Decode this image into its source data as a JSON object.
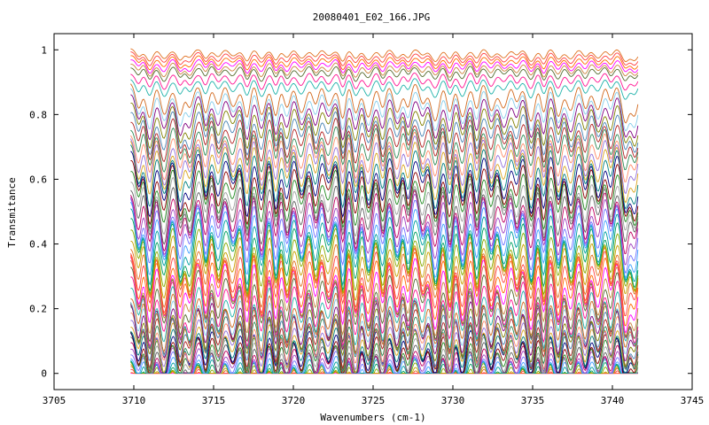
{
  "chart_data": {
    "type": "line",
    "title": "20080401_E02_166.JPG",
    "xlabel": "Wavenumbers (cm-1)",
    "ylabel": "Transmitance",
    "xlim": [
      3705,
      3745
    ],
    "ylim": [
      -0.05,
      1.05
    ],
    "x_ticks": [
      "3705",
      "3710",
      "3715",
      "3720",
      "3725",
      "3730",
      "3735",
      "3740",
      "3745"
    ],
    "y_ticks": [
      "0",
      "0.2",
      "0.4",
      "0.6",
      "0.8",
      "1"
    ],
    "x_range_data": [
      3709.8,
      3741.6
    ],
    "grid": false,
    "legend": "none",
    "series_levels": [
      0.0,
      0.005,
      0.01,
      0.015,
      0.02,
      0.03,
      0.04,
      0.05,
      0.06,
      0.07,
      0.08,
      0.09,
      0.1,
      0.11,
      0.12,
      0.13,
      0.14,
      0.15,
      0.16,
      0.17,
      0.18,
      0.19,
      0.2,
      0.21,
      0.22,
      0.23,
      0.24,
      0.25,
      0.27,
      0.29,
      0.31,
      0.33,
      0.35,
      0.37,
      0.39,
      0.41,
      0.43,
      0.45,
      0.47,
      0.49,
      0.51,
      0.53,
      0.55,
      0.57,
      0.59,
      0.61,
      0.63,
      0.65,
      0.67,
      0.69,
      0.71,
      0.73,
      0.75,
      0.77,
      0.79,
      0.81,
      0.83,
      0.85,
      0.87,
      0.89,
      0.91,
      0.93,
      0.95,
      0.96,
      0.97,
      0.98,
      0.99,
      1.0
    ],
    "absorption_lines": [
      3710.3,
      3711.0,
      3711.9,
      3712.9,
      3713.5,
      3714.5,
      3715.3,
      3716.2,
      3717.1,
      3718.0,
      3718.9,
      3719.6,
      3720.5,
      3721.4,
      3722.2,
      3723.1,
      3723.9,
      3724.7,
      3725.6,
      3726.5,
      3727.2,
      3728.1,
      3728.9,
      3729.8,
      3730.6,
      3731.5,
      3732.4,
      3733.2,
      3734.0,
      3734.9,
      3735.7,
      3736.6,
      3737.4,
      3738.3,
      3739.1,
      3739.9,
      3740.8,
      3741.4
    ],
    "colors": [
      "#ff00ff",
      "#ff6a00",
      "#ff4040",
      "#e07020",
      "#c8a000",
      "#88aa00",
      "#00a060",
      "#00a0a0",
      "#3fa0ff",
      "#7070ff",
      "#a040c0",
      "#c00060",
      "#606060",
      "#a0a0a0",
      "#228b22",
      "#8b0000",
      "#000080",
      "#008080",
      "#daa520",
      "#9370db",
      "#ff8c69",
      "#2e8b57",
      "#b22222",
      "#4682b4",
      "#808000",
      "#800080",
      "#87ceeb",
      "#d2691e",
      "#20b2aa",
      "#ff1493",
      "#556b2f",
      "#cd853f"
    ]
  }
}
